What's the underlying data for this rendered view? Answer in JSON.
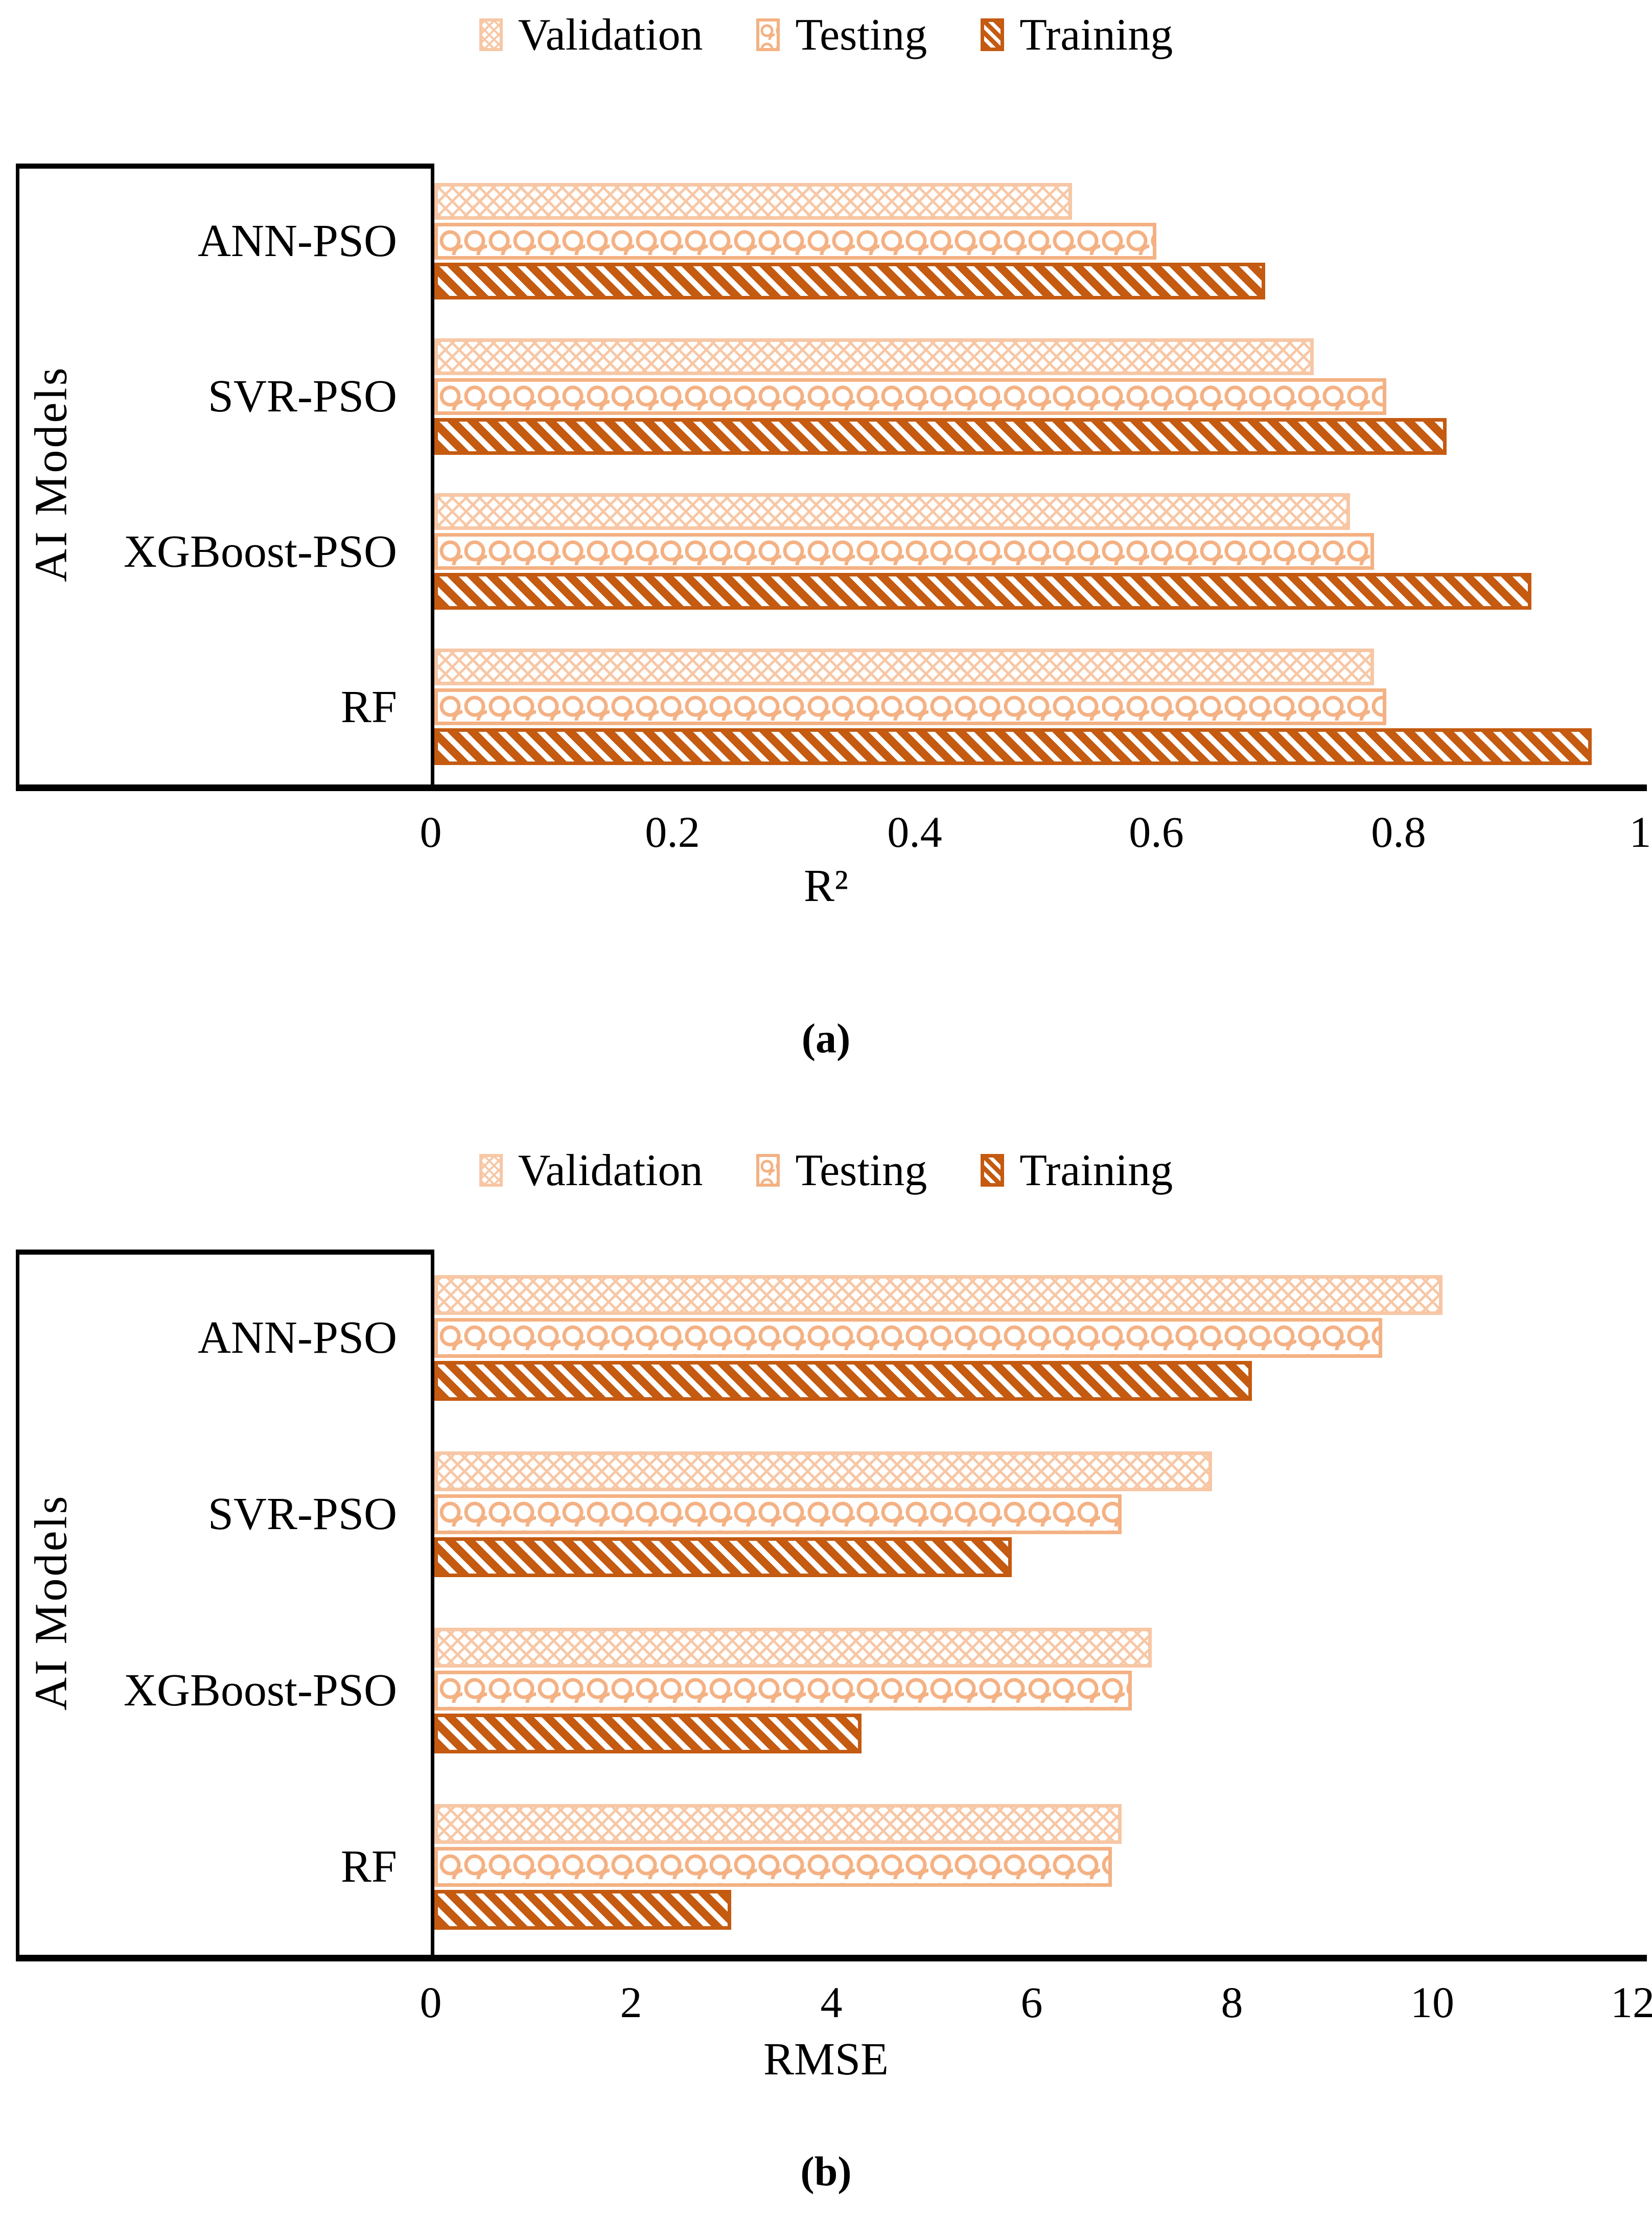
{
  "figure": {
    "legend": [
      "Validation",
      "Testing",
      "Training"
    ],
    "series_colors": {
      "Validation": "#F8CBAD",
      "Testing": "#F4B183",
      "Training": "#C55A11"
    },
    "text_color": "#000000",
    "background": "#ffffff"
  },
  "chart_data": [
    {
      "id": "a",
      "type": "bar",
      "orientation": "horizontal",
      "caption": "(a)",
      "xlabel": "R²",
      "ylabel": "AI Models",
      "legend_position": "top",
      "grid": false,
      "xlim": [
        0,
        1
      ],
      "x_ticks": [
        "0",
        "0.2",
        "0.4",
        "0.6",
        "0.8",
        "1"
      ],
      "categories": [
        "ANN-PSO",
        "SVR-PSO",
        "XGBoost-PSO",
        "RF"
      ],
      "series": [
        {
          "name": "Validation",
          "values": [
            0.53,
            0.73,
            0.76,
            0.78
          ]
        },
        {
          "name": "Testing",
          "values": [
            0.6,
            0.79,
            0.78,
            0.79
          ]
        },
        {
          "name": "Training",
          "values": [
            0.69,
            0.84,
            0.91,
            0.96
          ]
        }
      ]
    },
    {
      "id": "b",
      "type": "bar",
      "orientation": "horizontal",
      "caption": "(b)",
      "xlabel": "RMSE",
      "ylabel": "AI Models",
      "legend_position": "top",
      "grid": false,
      "xlim": [
        0,
        12
      ],
      "x_ticks": [
        "0",
        "2",
        "4",
        "6",
        "8",
        "10",
        "12"
      ],
      "categories": [
        "ANN-PSO",
        "SVR-PSO",
        "XGBoost-PSO",
        "RF"
      ],
      "series": [
        {
          "name": "Validation",
          "values": [
            10.1,
            7.8,
            7.2,
            6.9
          ]
        },
        {
          "name": "Testing",
          "values": [
            9.5,
            6.9,
            7.0,
            6.8
          ]
        },
        {
          "name": "Training",
          "values": [
            8.2,
            5.8,
            4.3,
            3.0
          ]
        }
      ]
    }
  ]
}
